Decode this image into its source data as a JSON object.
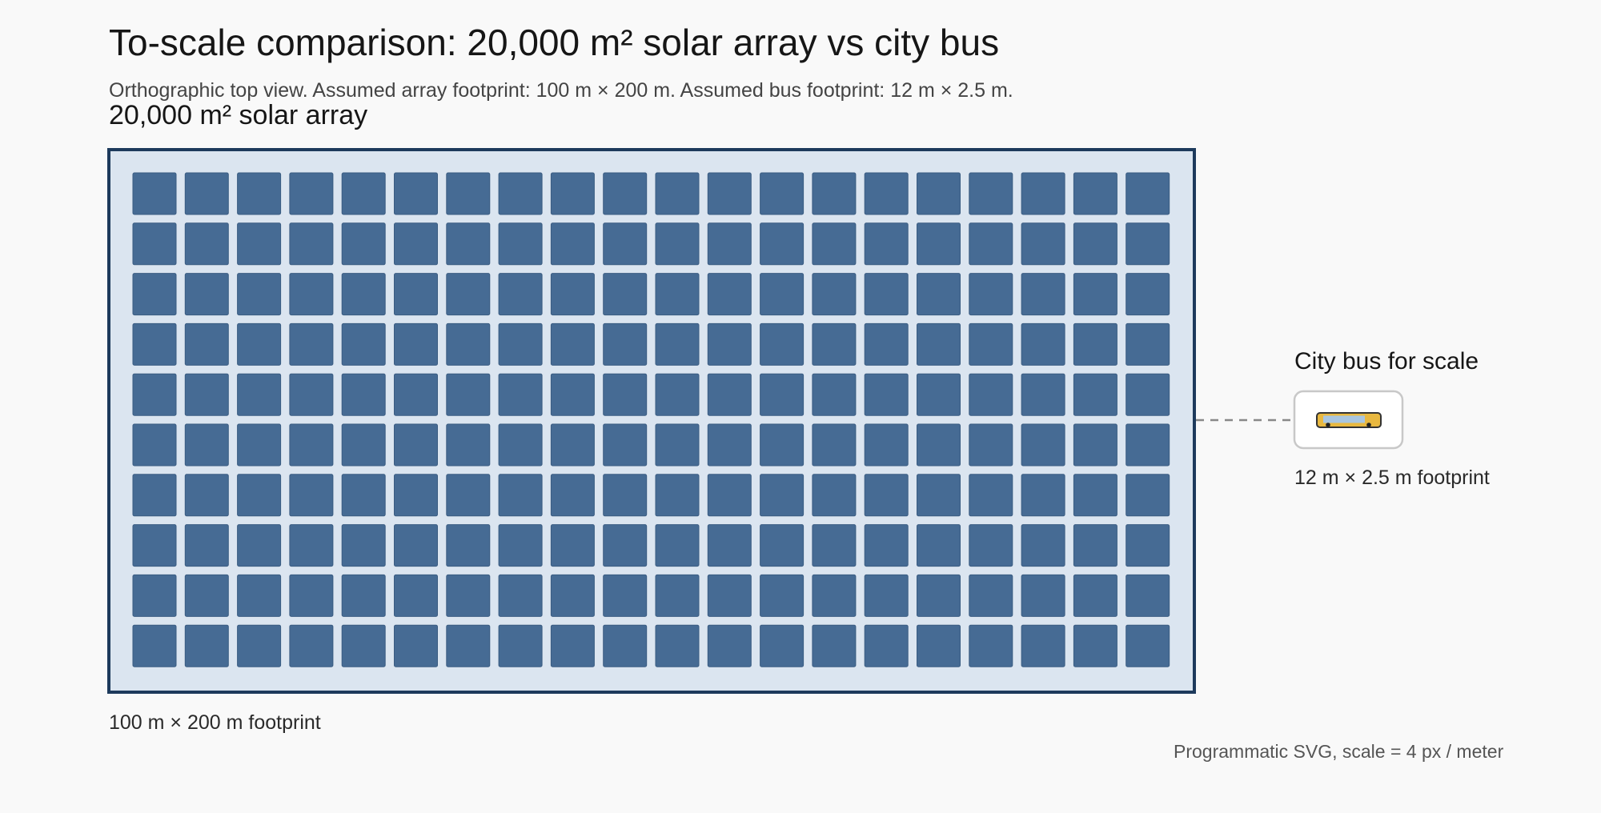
{
  "header": {
    "title": "To-scale comparison: 20,000 m² solar array vs city bus",
    "subtitle": "Orthographic top view. Assumed array footprint: 100 m × 200 m. Assumed bus footprint: 12 m × 2.5 m."
  },
  "solar_array": {
    "label": "20,000 m² solar array",
    "footprint_label": "100 m × 200 m footprint",
    "panel_rows": 10,
    "panel_cols": 20,
    "colors": {
      "field": "#dbe5f0",
      "border": "#1d3a5c",
      "panel": "#466b94",
      "panel_edge": "#3a5c82"
    }
  },
  "bus": {
    "title": "City bus for scale",
    "footprint_label": "12 m × 2.5 m footprint",
    "colors": {
      "body": "#e8b840",
      "window": "#a9c6e0",
      "outline": "#333333",
      "card_border": "#c8c8c8",
      "card_fill": "#ffffff",
      "connector": "#888888"
    }
  },
  "footer": {
    "note": "Programmatic SVG, scale = 4 px / meter"
  }
}
